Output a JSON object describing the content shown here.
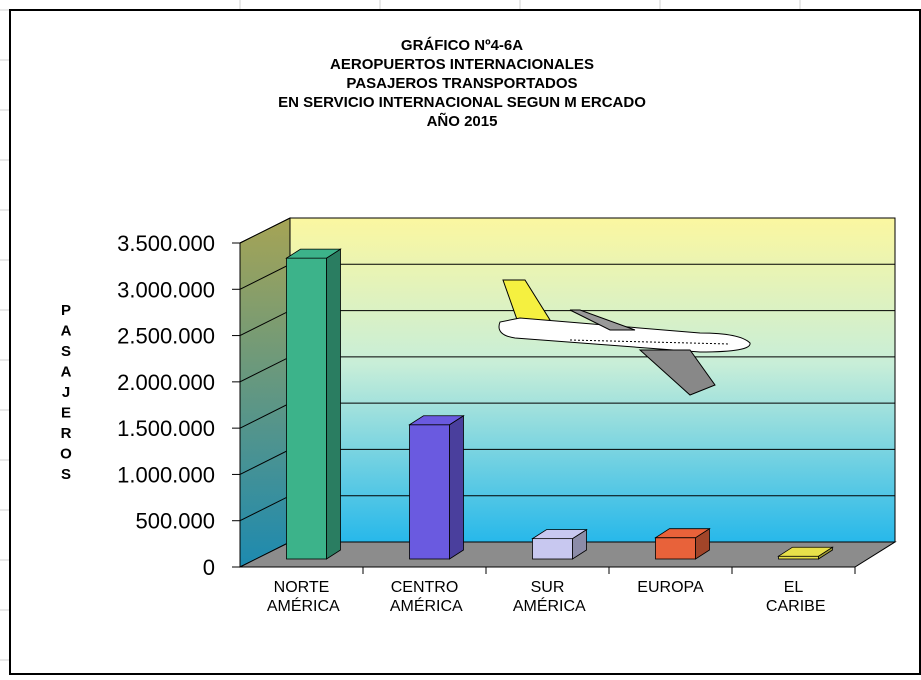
{
  "chart_data": {
    "type": "bar3d",
    "title": [
      "GRÁFICO Nº4-6A",
      "AEROPUERTOS  INTERNACIONALES",
      "PASAJEROS TRANSPORTADOS",
      "EN SERVICIO INTERNACIONAL  SEGUN M ERCADO",
      "AÑO 2015"
    ],
    "y_label": "PASAJEROS",
    "categories": [
      "NORTE AMÉRICA",
      "CENTRO AMÉRICA",
      "SUR AMÉRICA",
      "EUROPA",
      "EL CARIBE"
    ],
    "values": [
      3250000,
      1450000,
      220000,
      230000,
      30000
    ],
    "colors": [
      "#3cb38a",
      "#6a5ae0",
      "#c8c8f0",
      "#e8623a",
      "#e8e04a"
    ],
    "ylim": [
      0,
      3500000
    ],
    "yticks": [
      0,
      {
        "value": 500000,
        "label": "500.000"
      },
      {
        "value": 1000000,
        "label": "1.000.000"
      },
      {
        "value": 1500000,
        "label": "1.500.000"
      },
      {
        "value": 2000000,
        "label": "2.000.000"
      },
      {
        "value": 2500000,
        "label": "2.500.000"
      },
      {
        "value": 3000000,
        "label": "3.000.000"
      },
      {
        "value": 3500000,
        "label": "3.500.000"
      }
    ],
    "grid": true
  }
}
